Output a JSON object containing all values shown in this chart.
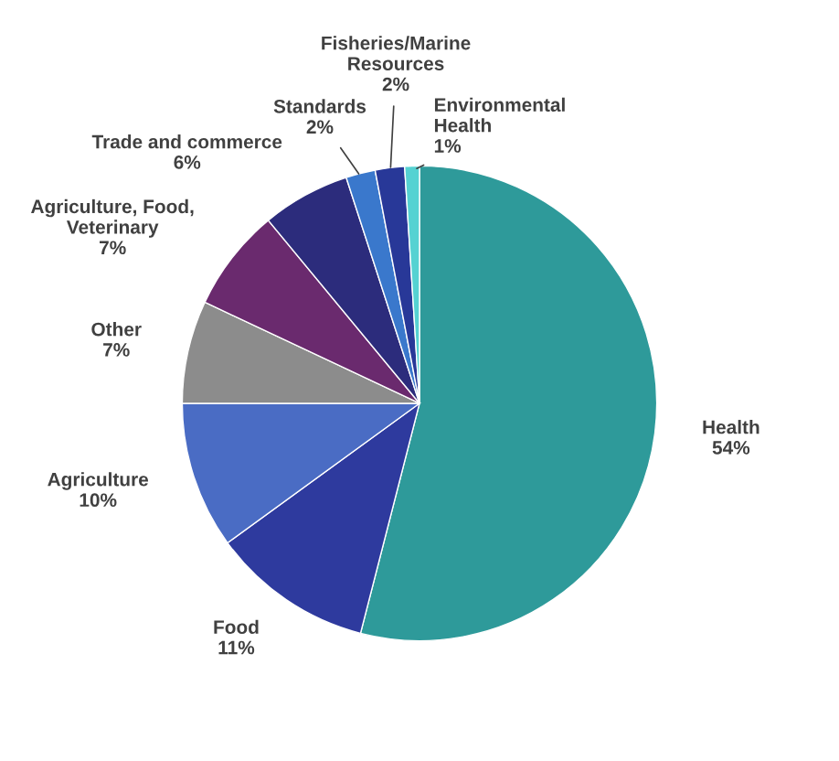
{
  "chart_data": {
    "type": "pie",
    "categories": [
      "Health",
      "Food",
      "Agriculture",
      "Other",
      "Agriculture, Food, Veterinary",
      "Trade and commerce",
      "Standards",
      "Fisheries/Marine Resources",
      "Environmental Health"
    ],
    "values": [
      54,
      11,
      10,
      7,
      7,
      6,
      2,
      2,
      1
    ],
    "colors": [
      "#2e9a9a",
      "#2e3a9e",
      "#4a6cc4",
      "#8c8c8c",
      "#6a2a6e",
      "#2c2c7c",
      "#3a78cc",
      "#283898",
      "#55d2d2"
    ],
    "value_labels": [
      "54%",
      "11%",
      "10%",
      "7%",
      "7%",
      "6%",
      "2%",
      "2%",
      "1%"
    ],
    "legend": false
  }
}
